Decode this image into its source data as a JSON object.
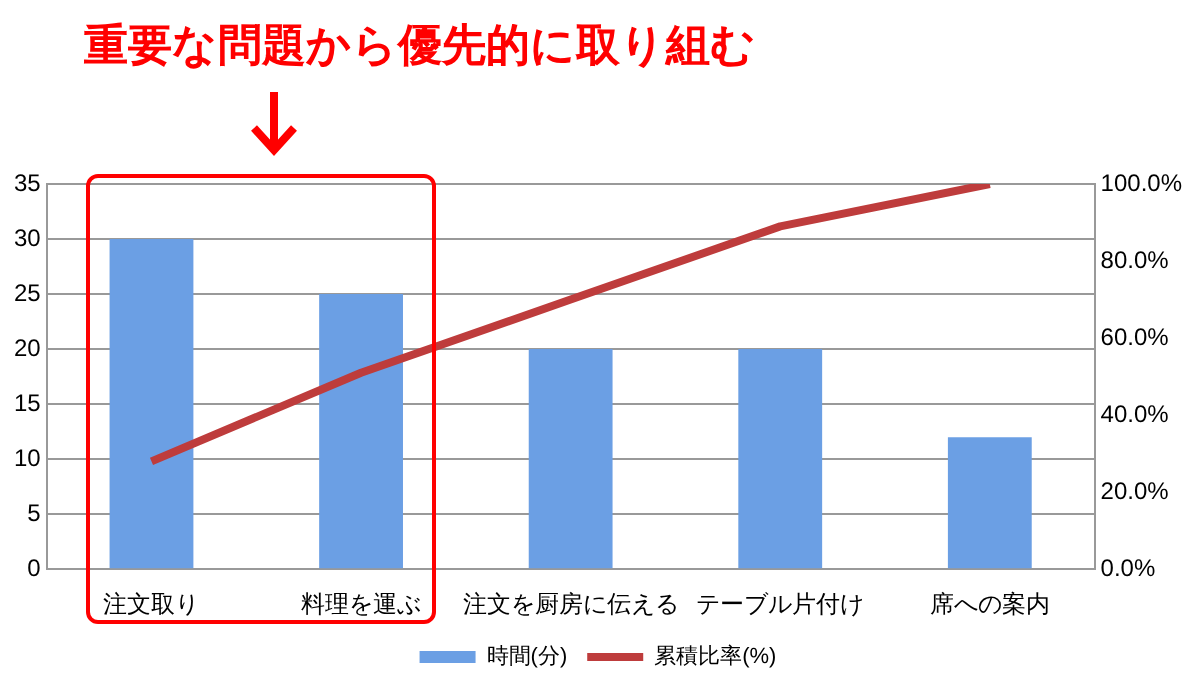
{
  "chart_data": {
    "type": "bar",
    "title": "重要な問題から優先的に取り組む",
    "categories": [
      "注文取り",
      "料理を運ぶ",
      "注文を厨房に伝える",
      "テーブル片付け",
      "席への案内"
    ],
    "series": [
      {
        "name": "時間(分)",
        "color": "#6b9fe4",
        "values": [
          30,
          25,
          20,
          20,
          12
        ]
      },
      {
        "name": "累積比率(%)",
        "type": "line",
        "axis": "y2",
        "color": "#be3c3c",
        "values": [
          28,
          51,
          70,
          89,
          100
        ]
      }
    ],
    "ylim": [
      0,
      35
    ],
    "yticks": [
      0,
      5,
      10,
      15,
      20,
      25,
      30,
      35
    ],
    "y2lim": [
      0,
      100
    ],
    "y2ticks": [
      {
        "value": 0,
        "label": "0.0%"
      },
      {
        "value": 20,
        "label": "20.0%"
      },
      {
        "value": 40,
        "label": "40.0%"
      },
      {
        "value": 60,
        "label": "60.0%"
      },
      {
        "value": 80,
        "label": "80.0%"
      },
      {
        "value": 100,
        "label": "100.0%"
      }
    ],
    "grid": "y",
    "legend": "bottom",
    "marker": "none"
  }
}
